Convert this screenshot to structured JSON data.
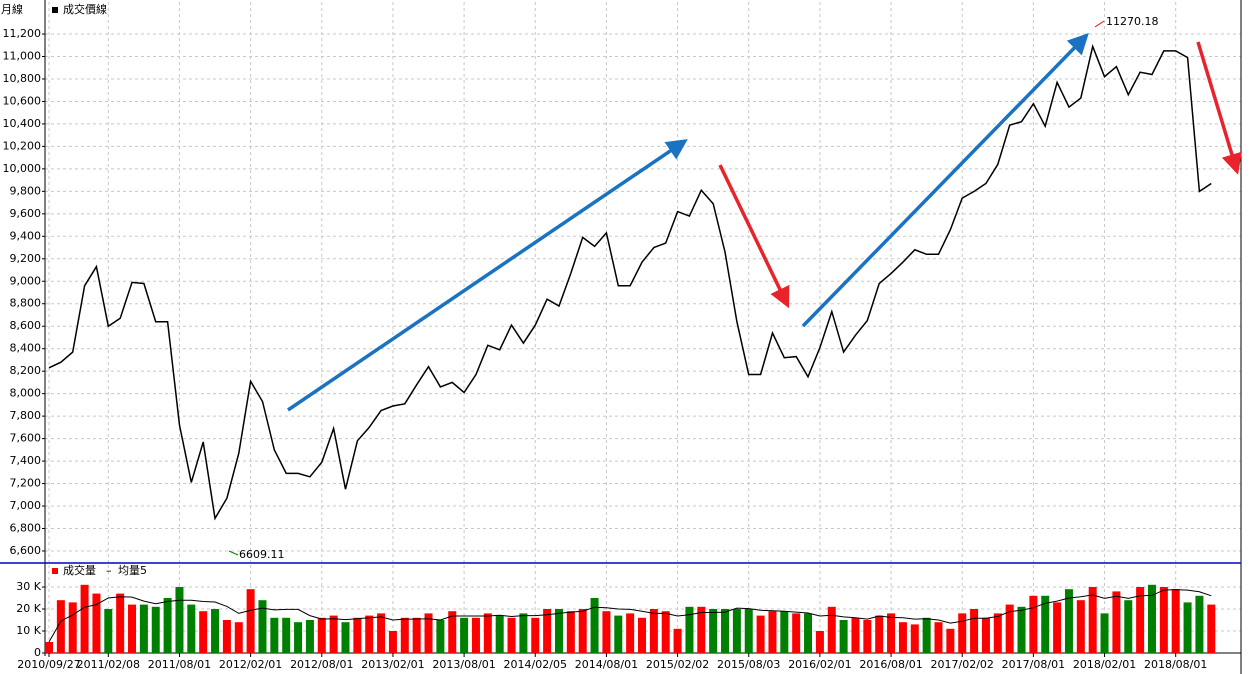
{
  "chart_data": [
    {
      "type": "line",
      "title": "月線",
      "series": [
        {
          "name": "成交價線",
          "color": "#000000",
          "values": [
            8230,
            8280,
            8370,
            8960,
            9130,
            8600,
            8670,
            8990,
            8980,
            8640,
            8640,
            7720,
            7210,
            7570,
            6890,
            7070,
            7470,
            8110,
            7930,
            7500,
            7290,
            7290,
            7260,
            7390,
            7690,
            7150,
            7580,
            7700,
            7850,
            7890,
            7910,
            8080,
            8240,
            8060,
            8100,
            8010,
            8170,
            8430,
            8390,
            8610,
            8450,
            8610,
            8840,
            8780,
            9070,
            9390,
            9310,
            9430,
            8960,
            8960,
            9170,
            9300,
            9340,
            9620,
            9580,
            9810,
            9690,
            9260,
            8640,
            8170,
            8170,
            8540,
            8320,
            8330,
            8150,
            8410,
            8730,
            8370,
            8520,
            8650,
            8980,
            9070,
            9170,
            9280,
            9240,
            9240,
            9460,
            9740,
            9800,
            9870,
            10040,
            10390,
            10420,
            10580,
            10380,
            10770,
            10550,
            10630,
            11090,
            10820,
            10910,
            10660,
            10860,
            10840,
            11050,
            11050,
            10990,
            9800,
            9870
          ]
        }
      ],
      "ylim": [
        6493,
        11485
      ],
      "yticks": [
        {
          "value": 6600,
          "label": "6,600"
        },
        {
          "value": 6800,
          "label": "6,800"
        },
        {
          "value": 7000,
          "label": "7,000"
        },
        {
          "value": 7200,
          "label": "7,200"
        },
        {
          "value": 7400,
          "label": "7,400"
        },
        {
          "value": 7600,
          "label": "7,600"
        },
        {
          "value": 7800,
          "label": "7,800"
        },
        {
          "value": 8000,
          "label": "8,000"
        },
        {
          "value": 8200,
          "label": "8,200"
        },
        {
          "value": 8400,
          "label": "8,400"
        },
        {
          "value": 8600,
          "label": "8,600"
        },
        {
          "value": 8800,
          "label": "8,800"
        },
        {
          "value": 9000,
          "label": "9,000"
        },
        {
          "value": 9200,
          "label": "9,200"
        },
        {
          "value": 9400,
          "label": "9,400"
        },
        {
          "value": 9600,
          "label": "9,600"
        },
        {
          "value": 9800,
          "label": "9,800"
        },
        {
          "value": 10000,
          "label": "10,000"
        },
        {
          "value": 10200,
          "label": "10,200"
        },
        {
          "value": 10400,
          "label": "10,400"
        },
        {
          "value": 10600,
          "label": "10,600"
        },
        {
          "value": 10800,
          "label": "10,800"
        },
        {
          "value": 11000,
          "label": "11,000"
        },
        {
          "value": 11200,
          "label": "11,200"
        }
      ],
      "grid": true,
      "annotations": [
        {
          "text": "11270.18",
          "color": "#ff0000"
        },
        {
          "text": "6609.11",
          "color": "#008000"
        }
      ]
    },
    {
      "type": "bar",
      "categories": [
        "2010/09/27",
        null,
        null,
        null,
        null,
        "2011/02/08",
        null,
        null,
        null,
        null,
        null,
        "2011/08/01",
        null,
        null,
        null,
        null,
        null,
        "2012/02/01",
        null,
        null,
        null,
        null,
        null,
        "2012/08/01",
        null,
        null,
        null,
        null,
        null,
        "2013/02/01",
        null,
        null,
        null,
        null,
        null,
        "2013/08/01",
        null,
        null,
        null,
        null,
        null,
        "2014/02/05",
        null,
        null,
        null,
        null,
        null,
        "2014/08/01",
        null,
        null,
        null,
        null,
        null,
        "2015/02/02",
        null,
        null,
        null,
        null,
        null,
        "2015/08/03",
        null,
        null,
        null,
        null,
        null,
        "2016/02/01",
        null,
        null,
        null,
        null,
        null,
        "2016/08/01",
        null,
        null,
        null,
        null,
        null,
        "2017/02/02",
        null,
        null,
        null,
        null,
        null,
        "2017/08/01",
        null,
        null,
        null,
        null,
        null,
        "2018/02/01",
        null,
        null,
        null,
        null,
        null,
        "2018/08/01",
        null,
        null,
        null
      ],
      "series": [
        {
          "name": "成交量",
          "color": "#ff0000",
          "values": [
            5,
            24,
            23,
            31,
            27,
            20,
            27,
            22,
            22,
            21,
            25,
            30,
            22,
            19,
            20,
            15,
            14,
            29,
            24,
            16,
            16,
            14,
            15,
            16,
            17,
            14,
            16,
            17,
            18,
            10,
            16,
            16,
            18,
            15,
            19,
            16,
            16,
            18,
            17,
            16,
            18,
            16,
            20,
            20,
            19,
            20,
            25,
            19,
            17,
            18,
            16,
            20,
            19,
            11,
            21,
            21,
            20,
            20,
            20,
            20,
            17,
            19,
            19,
            18,
            18,
            10,
            21,
            15,
            16,
            15,
            17,
            18,
            14,
            13,
            16,
            14,
            11,
            18,
            20,
            16,
            18,
            22,
            21,
            26,
            26,
            23,
            29,
            24,
            30,
            18,
            28,
            24,
            30,
            31,
            30,
            29,
            23,
            26,
            22
          ],
          "colors": [
            "#ff0000",
            "#ff0000",
            "#ff0000",
            "#ff0000",
            "#ff0000",
            "#008000",
            "#ff0000",
            "#ff0000",
            "#008000",
            "#008000",
            "#008000",
            "#008000",
            "#008000",
            "#ff0000",
            "#008000",
            "#ff0000",
            "#ff0000",
            "#ff0000",
            "#008000",
            "#008000",
            "#008000",
            "#008000",
            "#008000",
            "#ff0000",
            "#ff0000",
            "#008000",
            "#ff0000",
            "#ff0000",
            "#ff0000",
            "#ff0000",
            "#ff0000",
            "#ff0000",
            "#ff0000",
            "#008000",
            "#ff0000",
            "#008000",
            "#ff0000",
            "#ff0000",
            "#008000",
            "#ff0000",
            "#008000",
            "#ff0000",
            "#ff0000",
            "#008000",
            "#ff0000",
            "#ff0000",
            "#008000",
            "#ff0000",
            "#008000",
            "#ff0000",
            "#ff0000",
            "#ff0000",
            "#ff0000",
            "#ff0000",
            "#008000",
            "#ff0000",
            "#008000",
            "#008000",
            "#008000",
            "#008000",
            "#ff0000",
            "#ff0000",
            "#008000",
            "#ff0000",
            "#008000",
            "#ff0000",
            "#ff0000",
            "#008000",
            "#ff0000",
            "#ff0000",
            "#ff0000",
            "#ff0000",
            "#ff0000",
            "#ff0000",
            "#008000",
            "#ff0000",
            "#ff0000",
            "#ff0000",
            "#ff0000",
            "#ff0000",
            "#ff0000",
            "#ff0000",
            "#008000",
            "#ff0000",
            "#008000",
            "#ff0000",
            "#008000",
            "#ff0000",
            "#ff0000",
            "#008000",
            "#ff0000",
            "#008000",
            "#ff0000",
            "#008000",
            "#ff0000",
            "#ff0000",
            "#008000",
            "#008000",
            "#ff0000"
          ]
        },
        {
          "name": "均量5",
          "type": "line",
          "color": "#000000",
          "values": [
            5,
            14.5,
            17.3,
            20.8,
            22,
            25,
            25.6,
            25.4,
            23.6,
            22.4,
            23.4,
            24,
            24,
            23.4,
            23.2,
            21.2,
            18,
            19.4,
            20.4,
            19.6,
            19.8,
            19.8,
            17,
            15.4,
            15.6,
            15.2,
            15.6,
            16,
            16.4,
            15,
            15.4,
            15.4,
            15.6,
            15,
            16.8,
            16.8,
            16.8,
            16.8,
            17.2,
            16.6,
            17,
            17,
            17.4,
            18,
            18.6,
            19,
            20.8,
            20.6,
            20,
            19.8,
            19,
            18,
            18,
            16.8,
            17.4,
            18.4,
            18.4,
            18.6,
            20.4,
            20.2,
            19.4,
            19.2,
            19,
            18.6,
            18.2,
            16.8,
            17.2,
            16.4,
            16,
            15.4,
            16.8,
            16.2,
            16,
            15.4,
            15.6,
            15,
            13.6,
            14.4,
            15.8,
            15.8,
            16.6,
            18.8,
            19.4,
            20.6,
            22.6,
            23.6,
            25,
            25.6,
            26.4,
            24.8,
            25.8,
            24.8,
            26,
            26.2,
            28.6,
            28.8,
            28.6,
            27.8,
            26
          ]
        }
      ],
      "legend_separator": "–",
      "ylim": [
        0,
        40
      ],
      "yticks": [
        0,
        {
          "value": 10,
          "label": "10 K"
        },
        {
          "value": 20,
          "label": "20 K"
        },
        {
          "value": 30,
          "label": "30 K"
        }
      ],
      "grid": true
    }
  ]
}
